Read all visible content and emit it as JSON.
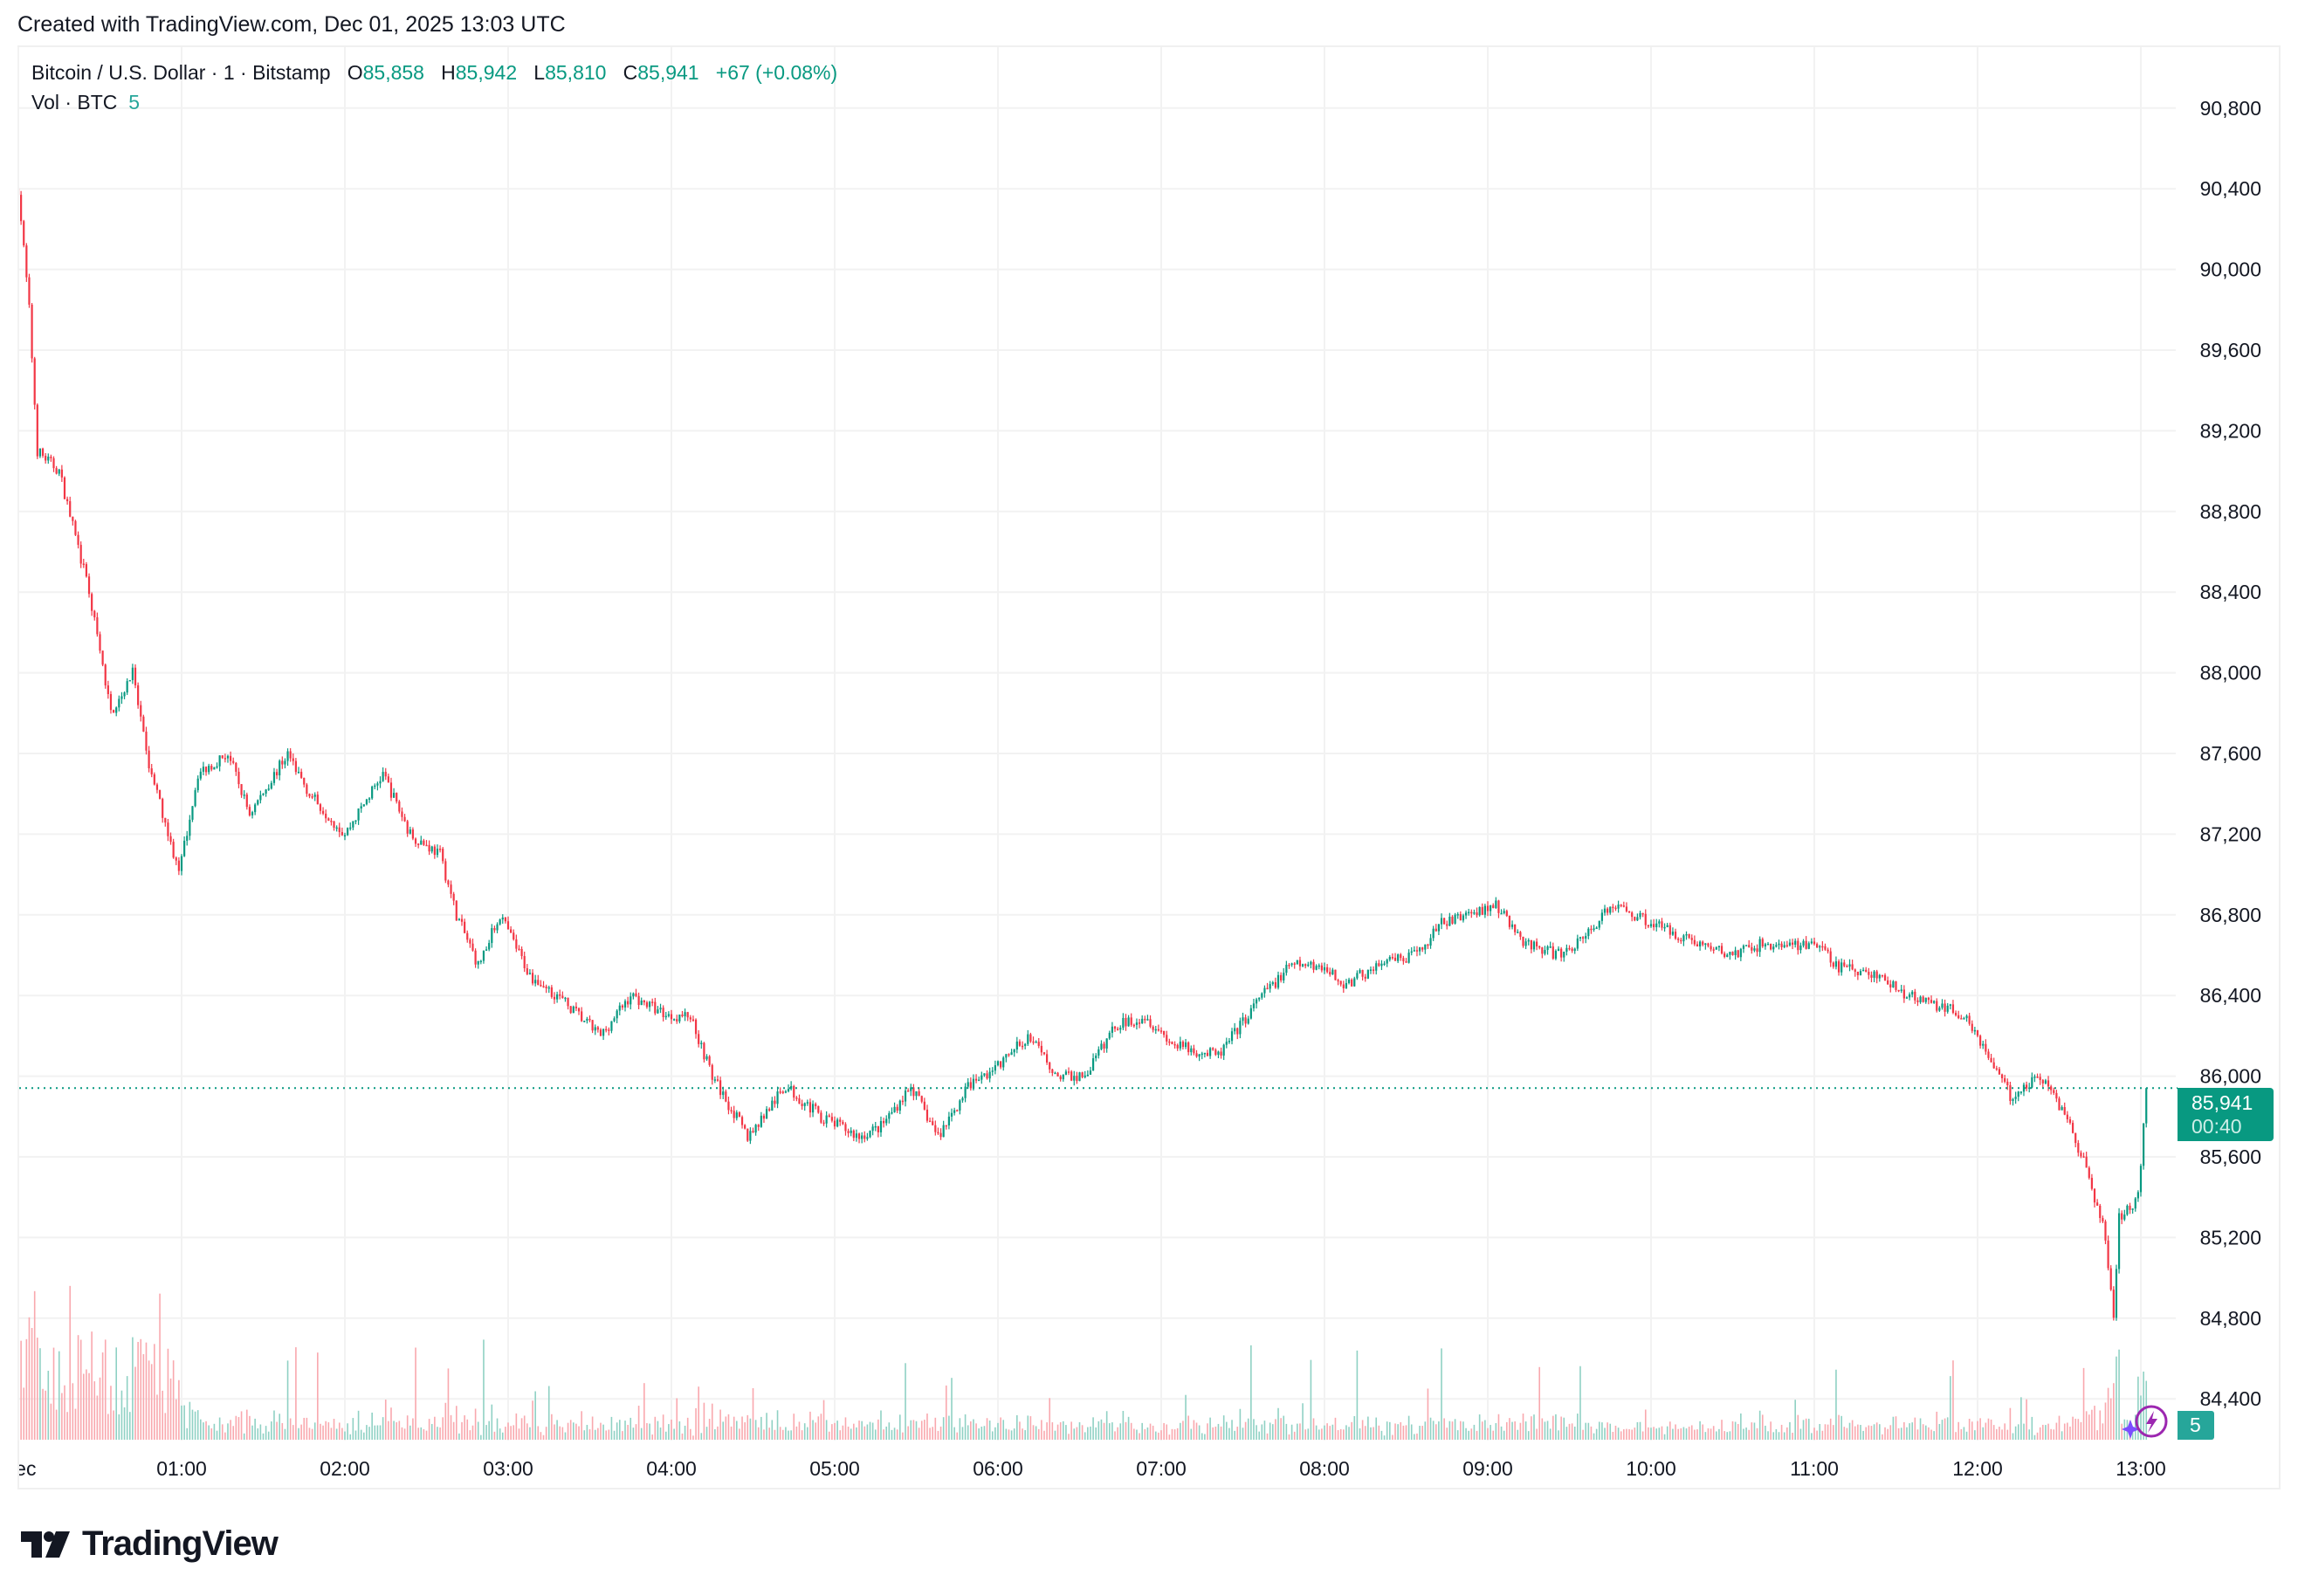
{
  "header": {
    "created": "Created with TradingView.com, Dec 01, 2025 13:03 UTC"
  },
  "legend": {
    "symbol": "Bitcoin / U.S. Dollar · 1 · Bitstamp",
    "o_label": "O",
    "open": "85,858",
    "h_label": "H",
    "high": "85,942",
    "l_label": "L",
    "low": "85,810",
    "c_label": "C",
    "close": "85,941",
    "change": "+67 (+0.08%)",
    "vol_label": "Vol · BTC",
    "vol_value": "5"
  },
  "price_tag": {
    "price": "85,941",
    "countdown": "00:40"
  },
  "volume_tag": "5",
  "logo": "TradingView",
  "colors": {
    "up": "#089981",
    "down": "#f23645",
    "up_volume": "#8fd1c4",
    "down_volume": "#f9a8ae",
    "grid": "#f2f2f2",
    "assistant_icon": "#9c27b0"
  },
  "icons": [
    "tradingview-logo-icon",
    "lightning-icon",
    "sparkle-icon"
  ],
  "chart_data": {
    "type": "candlestick",
    "interval": "1 minute",
    "ylim": [
      84200,
      91000
    ],
    "grid": true,
    "y_ticks": [
      "90,800",
      "90,400",
      "90,000",
      "89,600",
      "89,200",
      "88,800",
      "88,400",
      "88,000",
      "87,600",
      "87,200",
      "86,800",
      "86,400",
      "86,000",
      "85,600",
      "85,200",
      "84,800",
      "84,400"
    ],
    "x_ticks": [
      "Dec",
      "01:00",
      "02:00",
      "03:00",
      "04:00",
      "05:00",
      "06:00",
      "07:00",
      "08:00",
      "09:00",
      "10:00",
      "11:00",
      "12:00",
      "13:00"
    ],
    "approx_price_path": {
      "time": [
        "00:00",
        "00:04",
        "00:07",
        "00:15",
        "00:26",
        "00:34",
        "00:42",
        "00:47",
        "00:53",
        "00:59",
        "01:06",
        "01:17",
        "01:25",
        "01:39",
        "01:47",
        "02:00",
        "02:14",
        "02:24",
        "02:35",
        "02:41",
        "02:49",
        "02:57",
        "03:08",
        "03:18",
        "03:34",
        "03:45",
        "03:59",
        "04:07",
        "04:15",
        "04:28",
        "04:42",
        "04:55",
        "05:09",
        "05:17",
        "05:28",
        "05:38",
        "05:49",
        "06:00",
        "06:11",
        "06:22",
        "06:32",
        "06:43",
        "06:54",
        "07:05",
        "07:21",
        "07:37",
        "07:48",
        "07:59",
        "08:07",
        "08:20",
        "08:34",
        "08:42",
        "08:52",
        "09:03",
        "09:14",
        "09:27",
        "09:36",
        "09:46",
        "10:02",
        "10:19",
        "10:29",
        "10:40",
        "11:02",
        "11:07",
        "11:23",
        "11:34",
        "11:45",
        "11:56",
        "12:04",
        "12:12",
        "12:23",
        "12:33",
        "12:41",
        "12:47",
        "12:50",
        "12:52",
        "12:56",
        "12:59",
        "13:02"
      ],
      "price": [
        90400,
        89800,
        89100,
        89000,
        88400,
        87800,
        88000,
        87600,
        87300,
        87000,
        87500,
        87600,
        87300,
        87600,
        87400,
        87200,
        87500,
        87200,
        87100,
        86800,
        86550,
        86800,
        86500,
        86400,
        86200,
        86400,
        86300,
        86300,
        86000,
        85700,
        85950,
        85800,
        85700,
        85750,
        85950,
        85700,
        85950,
        86050,
        86200,
        86000,
        86000,
        86250,
        86300,
        86150,
        86100,
        86400,
        86550,
        86550,
        86450,
        86550,
        86600,
        86750,
        86800,
        86850,
        86650,
        86600,
        86700,
        86850,
        86750,
        86650,
        86600,
        86650,
        86650,
        86550,
        86500,
        86400,
        86350,
        86300,
        86100,
        85900,
        86000,
        85800,
        85500,
        85200,
        84800,
        85300,
        85350,
        85400,
        85941
      ]
    },
    "last_price": 85941
  }
}
